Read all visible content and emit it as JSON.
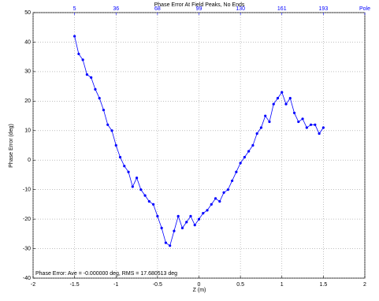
{
  "chart_data": {
    "type": "line",
    "title": "Phase Error At Field Peaks, No Ends",
    "xlabel": "Z (m)",
    "ylabel": "Phase Error (deg)",
    "annotation": "Phase Error: Ave = -0.000000 deg, RMS = 17.680513 deg",
    "x": [
      -1.5,
      -1.45,
      -1.4,
      -1.35,
      -1.3,
      -1.25,
      -1.2,
      -1.15,
      -1.1,
      -1.05,
      -1.0,
      -0.95,
      -0.9,
      -0.85,
      -0.8,
      -0.75,
      -0.7,
      -0.65,
      -0.6,
      -0.55,
      -0.5,
      -0.45,
      -0.4,
      -0.35,
      -0.3,
      -0.25,
      -0.2,
      -0.15,
      -0.1,
      -0.05,
      0,
      0.05,
      0.1,
      0.15,
      0.2,
      0.25,
      0.3,
      0.35,
      0.4,
      0.45,
      0.5,
      0.55,
      0.6,
      0.65,
      0.7,
      0.75,
      0.8,
      0.85,
      0.9,
      0.95,
      1.0,
      1.05,
      1.1,
      1.15,
      1.2,
      1.25,
      1.3,
      1.35,
      1.4,
      1.45,
      1.5
    ],
    "series": [
      {
        "color": "#0000ff",
        "values": [
          42,
          36,
          34,
          29,
          28,
          24,
          21,
          17,
          12,
          10,
          5,
          1,
          -2,
          -4,
          -9,
          -6,
          -10,
          -12,
          -14,
          -15,
          -19,
          -23,
          -28,
          -29,
          -24,
          -19,
          -23,
          -21,
          -19,
          -22,
          -20,
          -18,
          -17,
          -15,
          -13,
          -14,
          -11,
          -10,
          -7,
          -4,
          -1,
          1,
          3,
          5,
          9,
          11,
          15,
          13,
          19,
          21,
          23,
          19,
          21,
          16,
          13,
          14,
          11,
          12,
          12,
          9,
          11
        ]
      }
    ],
    "xlim": [
      -2,
      2
    ],
    "ylim": [
      -40,
      50
    ],
    "xticks": [
      -2,
      -1.5,
      -1,
      -0.5,
      0,
      0.5,
      1,
      1.5,
      2
    ],
    "yticks": [
      -40,
      -30,
      -20,
      -10,
      0,
      10,
      20,
      30,
      40,
      50
    ],
    "x2ticks": [
      {
        "value": -1.5,
        "label": "5"
      },
      {
        "value": -1.0,
        "label": "36"
      },
      {
        "value": -0.5,
        "label": "68"
      },
      {
        "value": 0,
        "label": "99"
      },
      {
        "value": 0.5,
        "label": "130"
      },
      {
        "value": 1.0,
        "label": "161"
      },
      {
        "value": 1.5,
        "label": "193"
      },
      {
        "value": 2,
        "label": "Pole"
      }
    ],
    "grid": true
  }
}
